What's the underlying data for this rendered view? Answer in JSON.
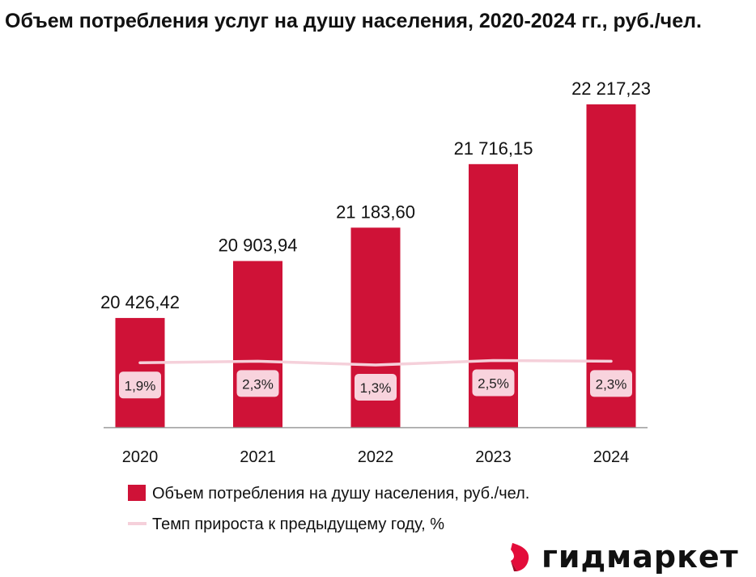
{
  "chart_data": {
    "type": "bar",
    "title": "Объем потребления услуг на душу населения, 2020-2024 гг., руб./чел.",
    "categories": [
      "2020",
      "2021",
      "2022",
      "2023",
      "2024"
    ],
    "series": [
      {
        "name": "Объем потребления на душу населения, руб./чел.",
        "type": "bar",
        "values": [
          20426.42,
          20903.94,
          21183.6,
          21716.15,
          22217.23
        ],
        "labels": [
          "20 426,42",
          "20 903,94",
          "21 183,60",
          "21 716,15",
          "22 217,23"
        ],
        "color": "#cf1237"
      },
      {
        "name": "Темп прироста к предыдущему году, %",
        "type": "line",
        "values": [
          1.9,
          2.3,
          1.3,
          2.5,
          2.3
        ],
        "labels": [
          "1,9%",
          "2,3%",
          "1,3%",
          "2,5%",
          "2,3%"
        ],
        "color": "#f5d0da"
      }
    ],
    "xlabel": "",
    "ylabel": "",
    "legend": "bottom",
    "grid": false
  },
  "logo": {
    "text": "гидмаркет",
    "color": "#e30c3a"
  }
}
